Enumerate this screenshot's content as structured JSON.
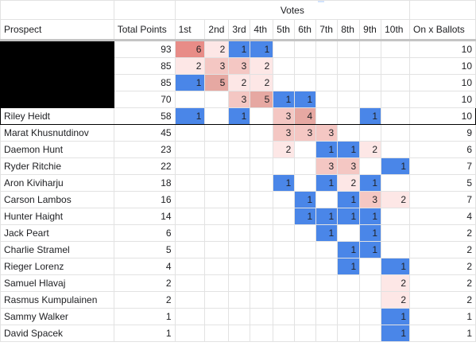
{
  "header": {
    "super_label": "Votes",
    "columns": [
      "Prospect",
      "Total Points",
      "1st",
      "2nd",
      "3rd",
      "4th",
      "5th",
      "6th",
      "7th",
      "8th",
      "9th",
      "10th",
      "On x Ballots"
    ]
  },
  "colors": {
    "blue": "#4a86e8",
    "pink_light": "#fde7e6",
    "pink_mid": "#f4c7c3",
    "pink_dark": "#e6a8a2",
    "salmon": "#e88c87",
    "redacted": "#000000",
    "highlight_border": "#000000"
  },
  "rows": [
    {
      "name": "",
      "redacted": true,
      "total": "93",
      "votes": [
        "6",
        "2",
        "1",
        "1",
        "",
        "",
        "",
        "",
        "",
        ""
      ],
      "ballots": "10"
    },
    {
      "name": "",
      "redacted": true,
      "total": "85",
      "votes": [
        "2",
        "3",
        "3",
        "2",
        "",
        "",
        "",
        "",
        "",
        ""
      ],
      "ballots": "10"
    },
    {
      "name": "",
      "redacted": true,
      "total": "85",
      "votes": [
        "1",
        "5",
        "2",
        "2",
        "",
        "",
        "",
        "",
        "",
        ""
      ],
      "ballots": "10"
    },
    {
      "name": "",
      "redacted": true,
      "total": "70",
      "votes": [
        "",
        "",
        "3",
        "5",
        "1",
        "1",
        "",
        "",
        "",
        ""
      ],
      "ballots": "10"
    },
    {
      "name": "Riley Heidt",
      "highlight": true,
      "total": "58",
      "votes": [
        "1",
        "",
        "1",
        "",
        "3",
        "4",
        "",
        "",
        "1",
        ""
      ],
      "ballots": "10"
    },
    {
      "name": "Marat Khusnutdinov",
      "total": "45",
      "votes": [
        "",
        "",
        "",
        "",
        "3",
        "3",
        "3",
        "",
        "",
        ""
      ],
      "ballots": "9"
    },
    {
      "name": "Daemon Hunt",
      "total": "23",
      "votes": [
        "",
        "",
        "",
        "",
        "2",
        "",
        "1",
        "1",
        "2",
        ""
      ],
      "ballots": "6"
    },
    {
      "name": "Ryder Ritchie",
      "total": "22",
      "votes": [
        "",
        "",
        "",
        "",
        "",
        "",
        "3",
        "3",
        "",
        "1"
      ],
      "ballots": "7"
    },
    {
      "name": "Aron Kiviharju",
      "total": "18",
      "votes": [
        "",
        "",
        "",
        "",
        "1",
        "",
        "1",
        "2",
        "1",
        ""
      ],
      "ballots": "5"
    },
    {
      "name": "Carson Lambos",
      "total": "16",
      "votes": [
        "",
        "",
        "",
        "",
        "",
        "1",
        "",
        "1",
        "3",
        "2"
      ],
      "ballots": "7"
    },
    {
      "name": "Hunter Haight",
      "total": "14",
      "votes": [
        "",
        "",
        "",
        "",
        "",
        "1",
        "1",
        "1",
        "1",
        ""
      ],
      "ballots": "4"
    },
    {
      "name": "Jack Peart",
      "total": "6",
      "votes": [
        "",
        "",
        "",
        "",
        "",
        "",
        "1",
        "",
        "1",
        ""
      ],
      "ballots": "2"
    },
    {
      "name": "Charlie Stramel",
      "total": "5",
      "votes": [
        "",
        "",
        "",
        "",
        "",
        "",
        "",
        "1",
        "1",
        ""
      ],
      "ballots": "2"
    },
    {
      "name": "Rieger Lorenz",
      "total": "4",
      "votes": [
        "",
        "",
        "",
        "",
        "",
        "",
        "",
        "1",
        "",
        "1"
      ],
      "ballots": "2"
    },
    {
      "name": "Samuel Hlavaj",
      "total": "2",
      "votes": [
        "",
        "",
        "",
        "",
        "",
        "",
        "",
        "",
        "",
        "2"
      ],
      "ballots": "2"
    },
    {
      "name": "Rasmus Kumpulainen",
      "total": "2",
      "votes": [
        "",
        "",
        "",
        "",
        "",
        "",
        "",
        "",
        "",
        "2"
      ],
      "ballots": "2"
    },
    {
      "name": "Sammy Walker",
      "total": "1",
      "votes": [
        "",
        "",
        "",
        "",
        "",
        "",
        "",
        "",
        "",
        "1"
      ],
      "ballots": "1"
    },
    {
      "name": "David Spacek",
      "total": "1",
      "votes": [
        "",
        "",
        "",
        "",
        "",
        "",
        "",
        "",
        "",
        "1"
      ],
      "ballots": "1"
    }
  ]
}
